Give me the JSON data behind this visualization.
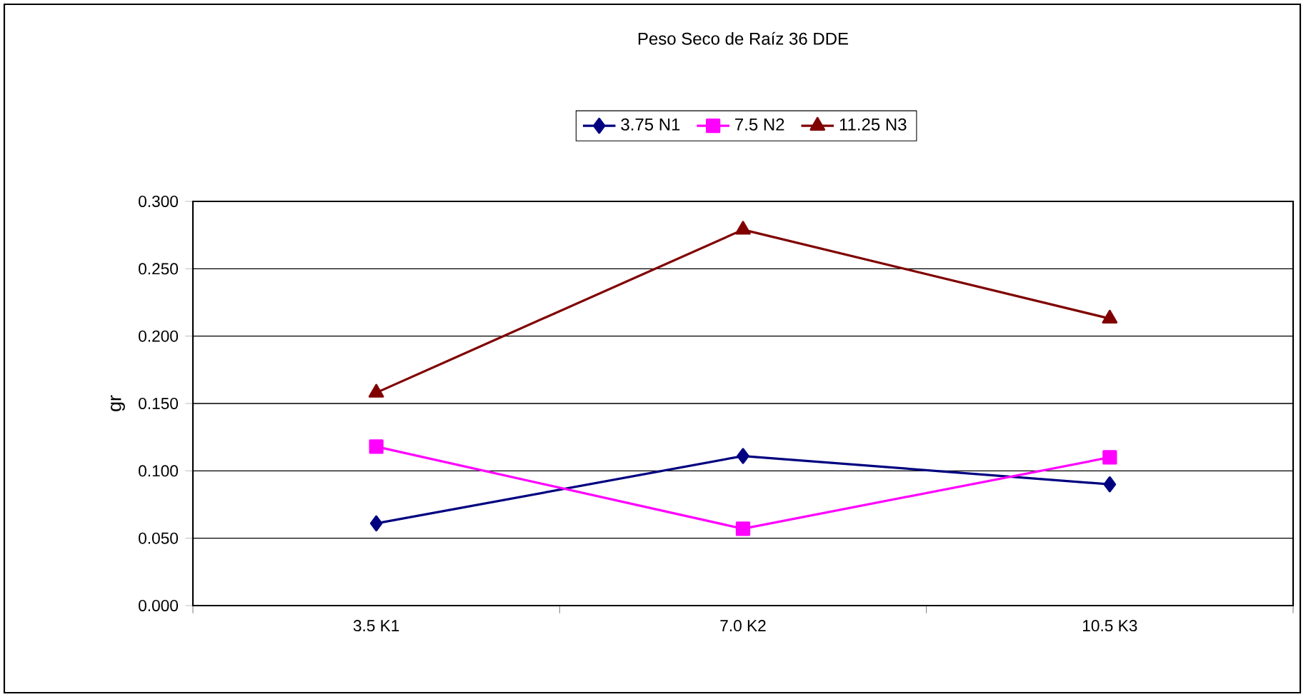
{
  "chart_data": {
    "type": "line",
    "title": "Peso Seco de Raíz 36 DDE",
    "ylabel": "gr",
    "categories": [
      "3.5 K1",
      "7.0 K2",
      "10.5 K3"
    ],
    "series": [
      {
        "name": "3.75 N1",
        "color": "#000080",
        "marker": "diamond",
        "values": [
          0.061,
          0.111,
          0.09
        ]
      },
      {
        "name": "7.5 N2",
        "color": "#ff00ff",
        "marker": "square",
        "values": [
          0.118,
          0.057,
          0.11
        ]
      },
      {
        "name": "11.25 N3",
        "color": "#800000",
        "marker": "triangle",
        "values": [
          0.158,
          0.279,
          0.213
        ]
      }
    ],
    "ylim": [
      0,
      0.3
    ],
    "yticks": [
      {
        "value": 0,
        "label": "0.000"
      },
      {
        "value": 0.05,
        "label": "0.050"
      },
      {
        "value": 0.1,
        "label": "0.100"
      },
      {
        "value": 0.15,
        "label": "0.150"
      },
      {
        "value": 0.2,
        "label": "0.200"
      },
      {
        "value": 0.25,
        "label": "0.250"
      },
      {
        "value": 0.3,
        "label": "0.300"
      }
    ],
    "grid": "y",
    "legend": "top"
  }
}
